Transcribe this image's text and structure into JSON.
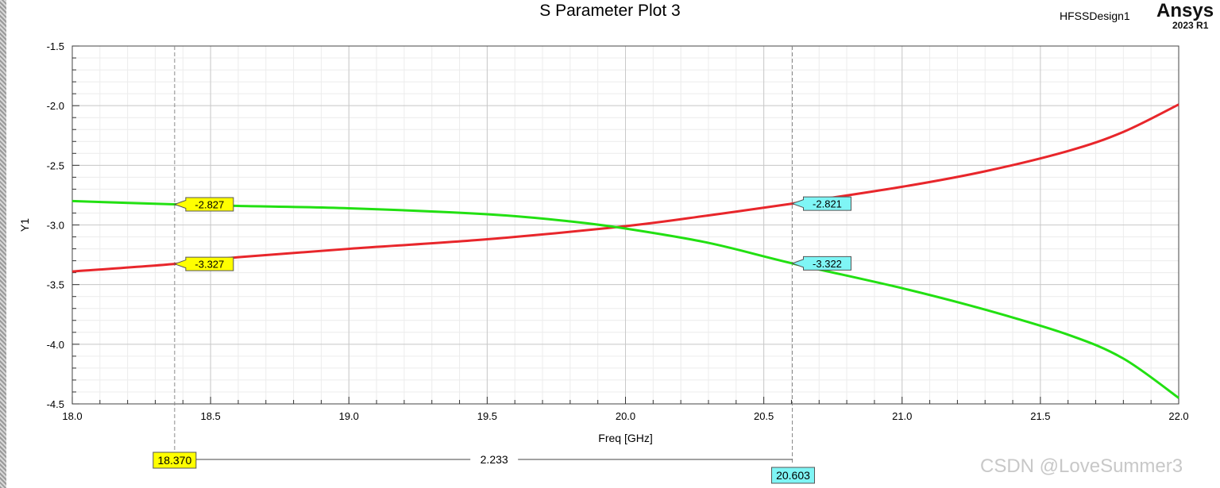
{
  "header": {
    "title": "S Parameter Plot 3",
    "design_name": "HFSSDesign1",
    "brand": "Ansys",
    "release": "2023 R1"
  },
  "watermark": "CSDN @LoveSummer3",
  "chart_data": {
    "type": "line",
    "title": "S Parameter Plot 3",
    "xlabel": "Freq [GHz]",
    "ylabel": "Y1",
    "xlim": [
      18.0,
      22.0
    ],
    "ylim": [
      -4.5,
      -1.5
    ],
    "x_ticks": [
      "18.0",
      "18.5",
      "19.0",
      "19.5",
      "20.0",
      "20.5",
      "21.0",
      "21.5",
      "22.0"
    ],
    "y_ticks": [
      "-1.5",
      "-2.0",
      "-2.5",
      "-3.0",
      "-3.5",
      "-4.0",
      "-4.5"
    ],
    "grid": true,
    "series": [
      {
        "color": "#e8262b",
        "x": [
          18.0,
          18.37,
          18.6,
          19.0,
          19.5,
          20.0,
          20.3,
          20.603,
          21.0,
          21.3,
          21.6,
          21.8,
          22.0
        ],
        "values": [
          -3.39,
          -3.327,
          -3.27,
          -3.2,
          -3.12,
          -3.01,
          -2.92,
          -2.821,
          -2.68,
          -2.55,
          -2.38,
          -2.22,
          -1.99
        ]
      },
      {
        "color": "#22e012",
        "x": [
          18.0,
          18.37,
          18.6,
          19.0,
          19.5,
          19.8,
          20.0,
          20.3,
          20.603,
          21.0,
          21.3,
          21.6,
          21.8,
          22.0
        ],
        "values": [
          -2.8,
          -2.827,
          -2.84,
          -2.86,
          -2.91,
          -2.97,
          -3.03,
          -3.15,
          -3.322,
          -3.53,
          -3.71,
          -3.92,
          -4.12,
          -4.45
        ]
      }
    ],
    "markers": [
      {
        "x": 18.37,
        "x_label": "18.370",
        "color": "#ffff00",
        "values": [
          "-2.827",
          "-3.327"
        ],
        "y": [
          -2.827,
          -3.327
        ]
      },
      {
        "x": 20.603,
        "x_label": "20.603",
        "color": "#7ff5f5",
        "values": [
          "-2.821",
          "-3.322"
        ],
        "y": [
          -2.821,
          -3.322
        ]
      }
    ],
    "delta_label": "2.233"
  }
}
